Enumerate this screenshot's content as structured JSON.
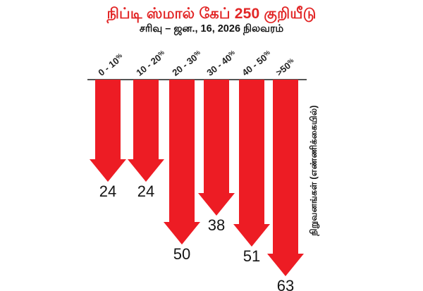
{
  "header": {
    "title": "நிப்டி ஸ்மால் கேப் 250 குறியீடு",
    "subtitle": "சரிவு – ஜன., 16, 2026 நிலவரம்"
  },
  "y_axis_label": "நிறுவனங்கள் (எண்ணிக்கையில்)",
  "x_labels": [
    {
      "text": "0 - 10",
      "suffix": "%"
    },
    {
      "text": "10 - 20",
      "suffix": "%"
    },
    {
      "text": "20 - 30",
      "suffix": "%"
    },
    {
      "text": "30 - 40",
      "suffix": "%"
    },
    {
      "text": "40 - 50",
      "suffix": "%"
    },
    {
      "text": ">50",
      "suffix": "%"
    }
  ],
  "colors": {
    "arrow_red": "#ed1c24",
    "title_red": "#e22626",
    "ink": "#141414",
    "axis_line": "#555555"
  },
  "chart_data": {
    "type": "bar",
    "variant": "downward-arrow-bars",
    "title": "நிப்டி ஸ்மால் கேப் 250 குறியீடு",
    "subtitle": "சரிவு – ஜன., 16, 2026 நிலவரம்",
    "categories": [
      "0 - 10%",
      "10 - 20%",
      "20 - 30%",
      "30 - 40%",
      "40 - 50%",
      ">50%"
    ],
    "values": [
      24,
      24,
      50,
      38,
      51,
      63
    ],
    "ylabel": "நிறுவனங்கள் (எண்ணிக்கையில்)",
    "legend": "none",
    "grid": "off",
    "orientation": "values-point-downward"
  }
}
